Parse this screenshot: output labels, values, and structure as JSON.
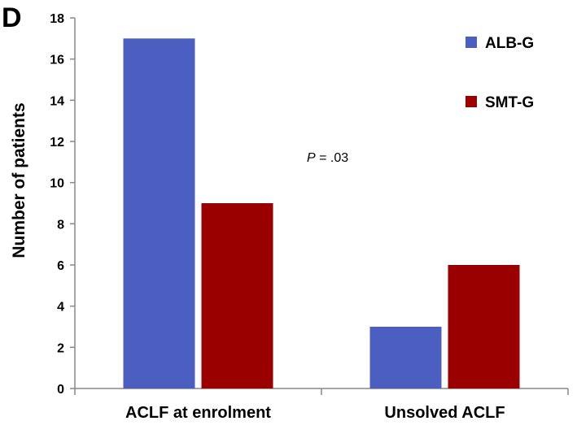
{
  "panel_label": "D",
  "annotation": {
    "italic": "P",
    "rest": " = .03"
  },
  "chart_data": {
    "type": "bar",
    "categories": [
      "ACLF at enrolment",
      "Unsolved ACLF"
    ],
    "series": [
      {
        "name": "ALB-G",
        "values": [
          17,
          3
        ],
        "color": "#4A5FBF"
      },
      {
        "name": "SMT-G",
        "values": [
          9,
          6
        ],
        "color": "#9B0000"
      }
    ],
    "title": "",
    "xlabel": "",
    "ylabel": "Number of patients",
    "ylim": [
      0,
      18
    ],
    "yticks": [
      0,
      2,
      4,
      6,
      8,
      10,
      12,
      14,
      16,
      18
    ],
    "grid": false,
    "legend_position": "top-right"
  }
}
